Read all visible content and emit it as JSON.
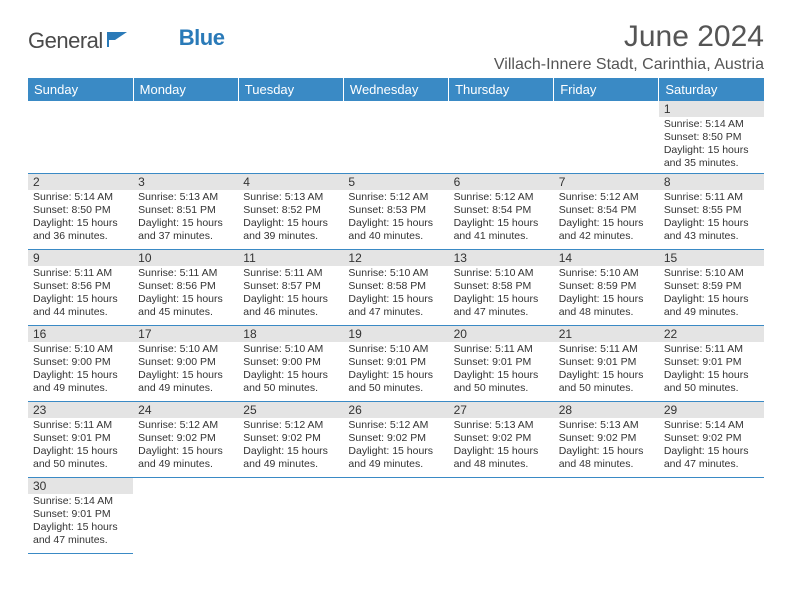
{
  "logo": {
    "word1": "General",
    "word2": "Blue"
  },
  "title": "June 2024",
  "location": "Villach-Innere Stadt, Carinthia, Austria",
  "header_bg": "#3a8ac5",
  "dayhead_bg": "#e4e4e4",
  "border_color": "#3a8ac5",
  "weekdays": [
    "Sunday",
    "Monday",
    "Tuesday",
    "Wednesday",
    "Thursday",
    "Friday",
    "Saturday"
  ],
  "weeks": [
    [
      null,
      null,
      null,
      null,
      null,
      null,
      {
        "n": "1",
        "sr": "Sunrise: 5:14 AM",
        "ss": "Sunset: 8:50 PM",
        "d1": "Daylight: 15 hours",
        "d2": "and 35 minutes."
      }
    ],
    [
      {
        "n": "2",
        "sr": "Sunrise: 5:14 AM",
        "ss": "Sunset: 8:50 PM",
        "d1": "Daylight: 15 hours",
        "d2": "and 36 minutes."
      },
      {
        "n": "3",
        "sr": "Sunrise: 5:13 AM",
        "ss": "Sunset: 8:51 PM",
        "d1": "Daylight: 15 hours",
        "d2": "and 37 minutes."
      },
      {
        "n": "4",
        "sr": "Sunrise: 5:13 AM",
        "ss": "Sunset: 8:52 PM",
        "d1": "Daylight: 15 hours",
        "d2": "and 39 minutes."
      },
      {
        "n": "5",
        "sr": "Sunrise: 5:12 AM",
        "ss": "Sunset: 8:53 PM",
        "d1": "Daylight: 15 hours",
        "d2": "and 40 minutes."
      },
      {
        "n": "6",
        "sr": "Sunrise: 5:12 AM",
        "ss": "Sunset: 8:54 PM",
        "d1": "Daylight: 15 hours",
        "d2": "and 41 minutes."
      },
      {
        "n": "7",
        "sr": "Sunrise: 5:12 AM",
        "ss": "Sunset: 8:54 PM",
        "d1": "Daylight: 15 hours",
        "d2": "and 42 minutes."
      },
      {
        "n": "8",
        "sr": "Sunrise: 5:11 AM",
        "ss": "Sunset: 8:55 PM",
        "d1": "Daylight: 15 hours",
        "d2": "and 43 minutes."
      }
    ],
    [
      {
        "n": "9",
        "sr": "Sunrise: 5:11 AM",
        "ss": "Sunset: 8:56 PM",
        "d1": "Daylight: 15 hours",
        "d2": "and 44 minutes."
      },
      {
        "n": "10",
        "sr": "Sunrise: 5:11 AM",
        "ss": "Sunset: 8:56 PM",
        "d1": "Daylight: 15 hours",
        "d2": "and 45 minutes."
      },
      {
        "n": "11",
        "sr": "Sunrise: 5:11 AM",
        "ss": "Sunset: 8:57 PM",
        "d1": "Daylight: 15 hours",
        "d2": "and 46 minutes."
      },
      {
        "n": "12",
        "sr": "Sunrise: 5:10 AM",
        "ss": "Sunset: 8:58 PM",
        "d1": "Daylight: 15 hours",
        "d2": "and 47 minutes."
      },
      {
        "n": "13",
        "sr": "Sunrise: 5:10 AM",
        "ss": "Sunset: 8:58 PM",
        "d1": "Daylight: 15 hours",
        "d2": "and 47 minutes."
      },
      {
        "n": "14",
        "sr": "Sunrise: 5:10 AM",
        "ss": "Sunset: 8:59 PM",
        "d1": "Daylight: 15 hours",
        "d2": "and 48 minutes."
      },
      {
        "n": "15",
        "sr": "Sunrise: 5:10 AM",
        "ss": "Sunset: 8:59 PM",
        "d1": "Daylight: 15 hours",
        "d2": "and 49 minutes."
      }
    ],
    [
      {
        "n": "16",
        "sr": "Sunrise: 5:10 AM",
        "ss": "Sunset: 9:00 PM",
        "d1": "Daylight: 15 hours",
        "d2": "and 49 minutes."
      },
      {
        "n": "17",
        "sr": "Sunrise: 5:10 AM",
        "ss": "Sunset: 9:00 PM",
        "d1": "Daylight: 15 hours",
        "d2": "and 49 minutes."
      },
      {
        "n": "18",
        "sr": "Sunrise: 5:10 AM",
        "ss": "Sunset: 9:00 PM",
        "d1": "Daylight: 15 hours",
        "d2": "and 50 minutes."
      },
      {
        "n": "19",
        "sr": "Sunrise: 5:10 AM",
        "ss": "Sunset: 9:01 PM",
        "d1": "Daylight: 15 hours",
        "d2": "and 50 minutes."
      },
      {
        "n": "20",
        "sr": "Sunrise: 5:11 AM",
        "ss": "Sunset: 9:01 PM",
        "d1": "Daylight: 15 hours",
        "d2": "and 50 minutes."
      },
      {
        "n": "21",
        "sr": "Sunrise: 5:11 AM",
        "ss": "Sunset: 9:01 PM",
        "d1": "Daylight: 15 hours",
        "d2": "and 50 minutes."
      },
      {
        "n": "22",
        "sr": "Sunrise: 5:11 AM",
        "ss": "Sunset: 9:01 PM",
        "d1": "Daylight: 15 hours",
        "d2": "and 50 minutes."
      }
    ],
    [
      {
        "n": "23",
        "sr": "Sunrise: 5:11 AM",
        "ss": "Sunset: 9:01 PM",
        "d1": "Daylight: 15 hours",
        "d2": "and 50 minutes."
      },
      {
        "n": "24",
        "sr": "Sunrise: 5:12 AM",
        "ss": "Sunset: 9:02 PM",
        "d1": "Daylight: 15 hours",
        "d2": "and 49 minutes."
      },
      {
        "n": "25",
        "sr": "Sunrise: 5:12 AM",
        "ss": "Sunset: 9:02 PM",
        "d1": "Daylight: 15 hours",
        "d2": "and 49 minutes."
      },
      {
        "n": "26",
        "sr": "Sunrise: 5:12 AM",
        "ss": "Sunset: 9:02 PM",
        "d1": "Daylight: 15 hours",
        "d2": "and 49 minutes."
      },
      {
        "n": "27",
        "sr": "Sunrise: 5:13 AM",
        "ss": "Sunset: 9:02 PM",
        "d1": "Daylight: 15 hours",
        "d2": "and 48 minutes."
      },
      {
        "n": "28",
        "sr": "Sunrise: 5:13 AM",
        "ss": "Sunset: 9:02 PM",
        "d1": "Daylight: 15 hours",
        "d2": "and 48 minutes."
      },
      {
        "n": "29",
        "sr": "Sunrise: 5:14 AM",
        "ss": "Sunset: 9:02 PM",
        "d1": "Daylight: 15 hours",
        "d2": "and 47 minutes."
      }
    ],
    [
      {
        "n": "30",
        "sr": "Sunrise: 5:14 AM",
        "ss": "Sunset: 9:01 PM",
        "d1": "Daylight: 15 hours",
        "d2": "and 47 minutes."
      },
      null,
      null,
      null,
      null,
      null,
      null
    ]
  ]
}
